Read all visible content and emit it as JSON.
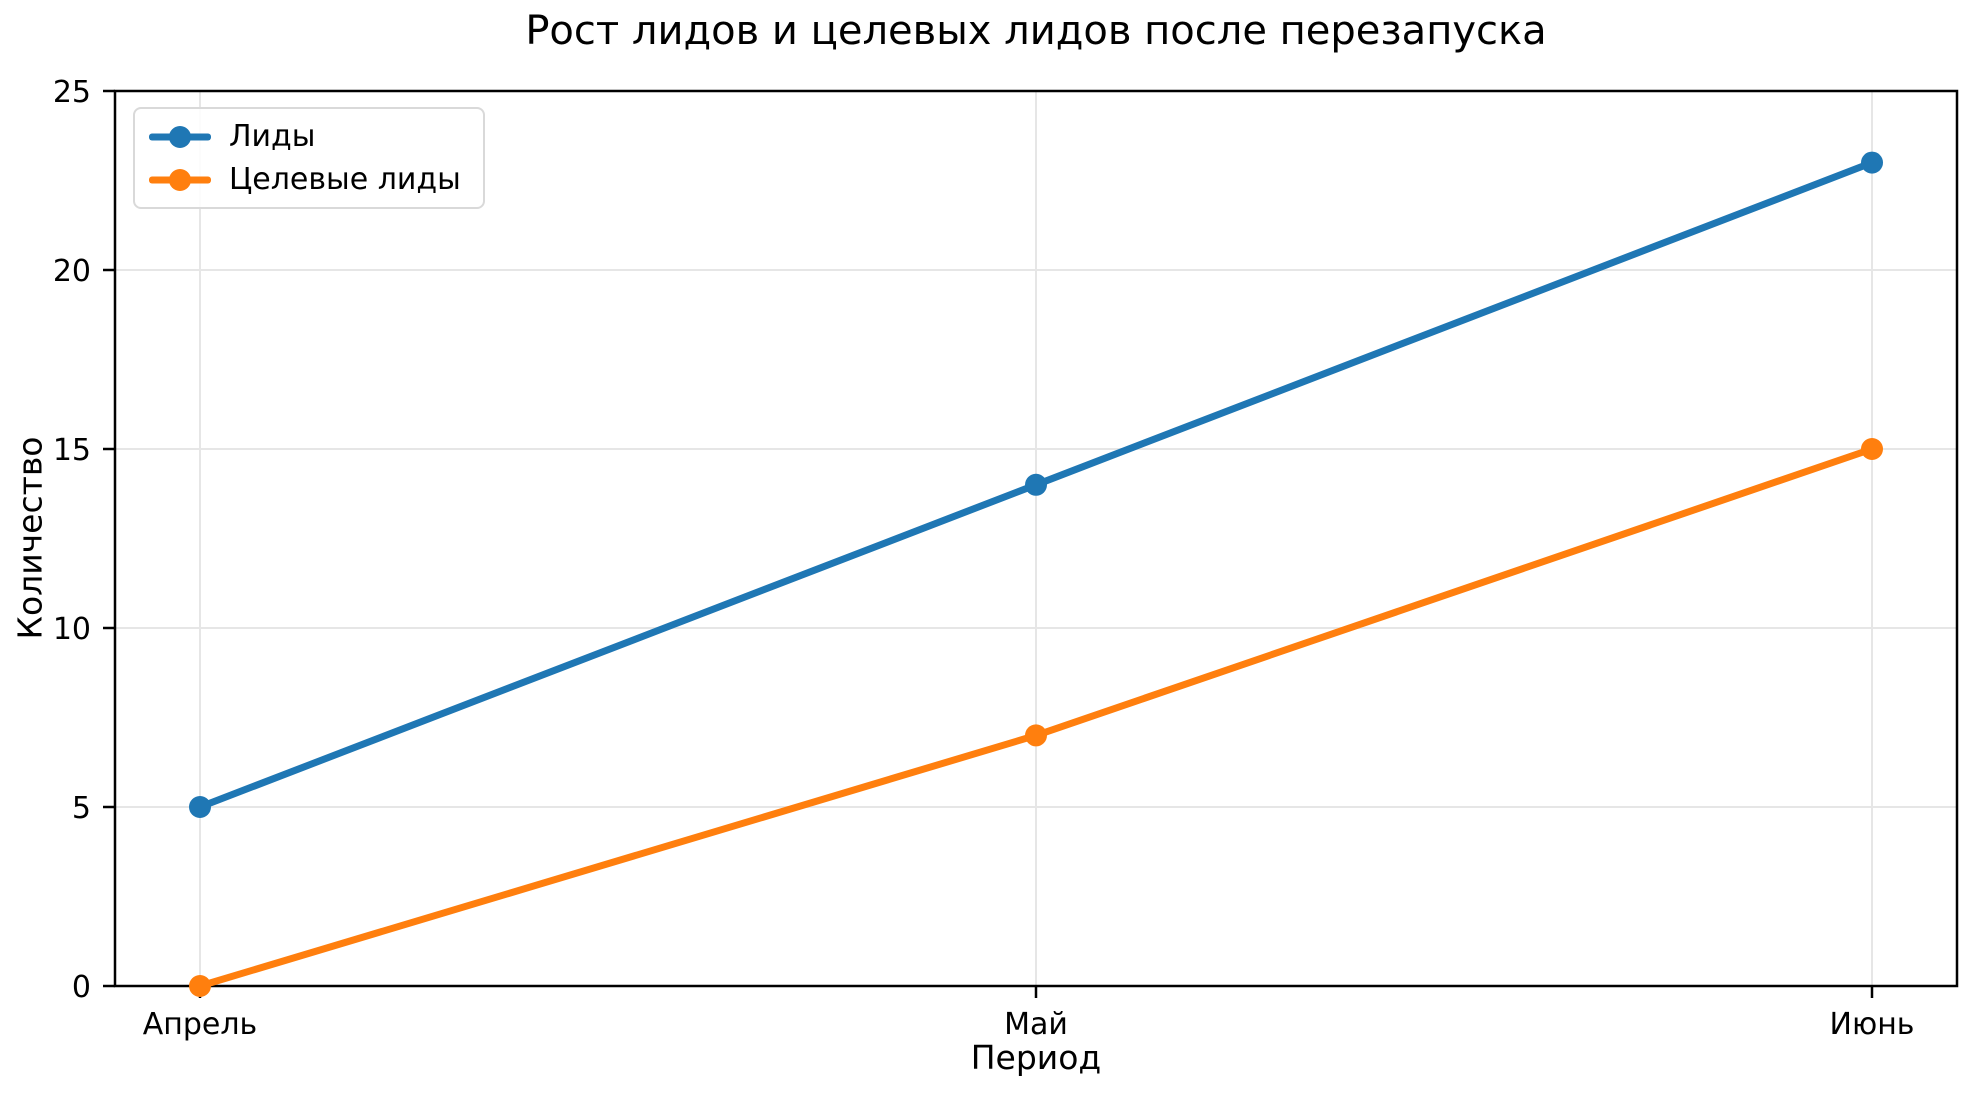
{
  "chart_data": {
    "type": "line",
    "title": "Рост лидов и целевых лидов после перезапуска",
    "xlabel": "Период",
    "ylabel": "Количество",
    "categories": [
      "Апрель",
      "Май",
      "Июнь"
    ],
    "series": [
      {
        "name": "Лиды",
        "color": "#1f77b4",
        "values": [
          5,
          14,
          23
        ]
      },
      {
        "name": "Целевые лиды",
        "color": "#ff7f0e",
        "values": [
          0,
          7,
          15
        ]
      }
    ],
    "ylim": [
      0,
      25
    ],
    "yticks": [
      0,
      5,
      10,
      15,
      20,
      25
    ],
    "grid": true,
    "legend_position": "upper left",
    "marker": "circle"
  },
  "style": {
    "grid_color": "#e6e6e6",
    "spine_color": "#000000",
    "tick_label_color": "#000000",
    "legend_border_color": "#d9d9d9",
    "background": "#ffffff"
  }
}
